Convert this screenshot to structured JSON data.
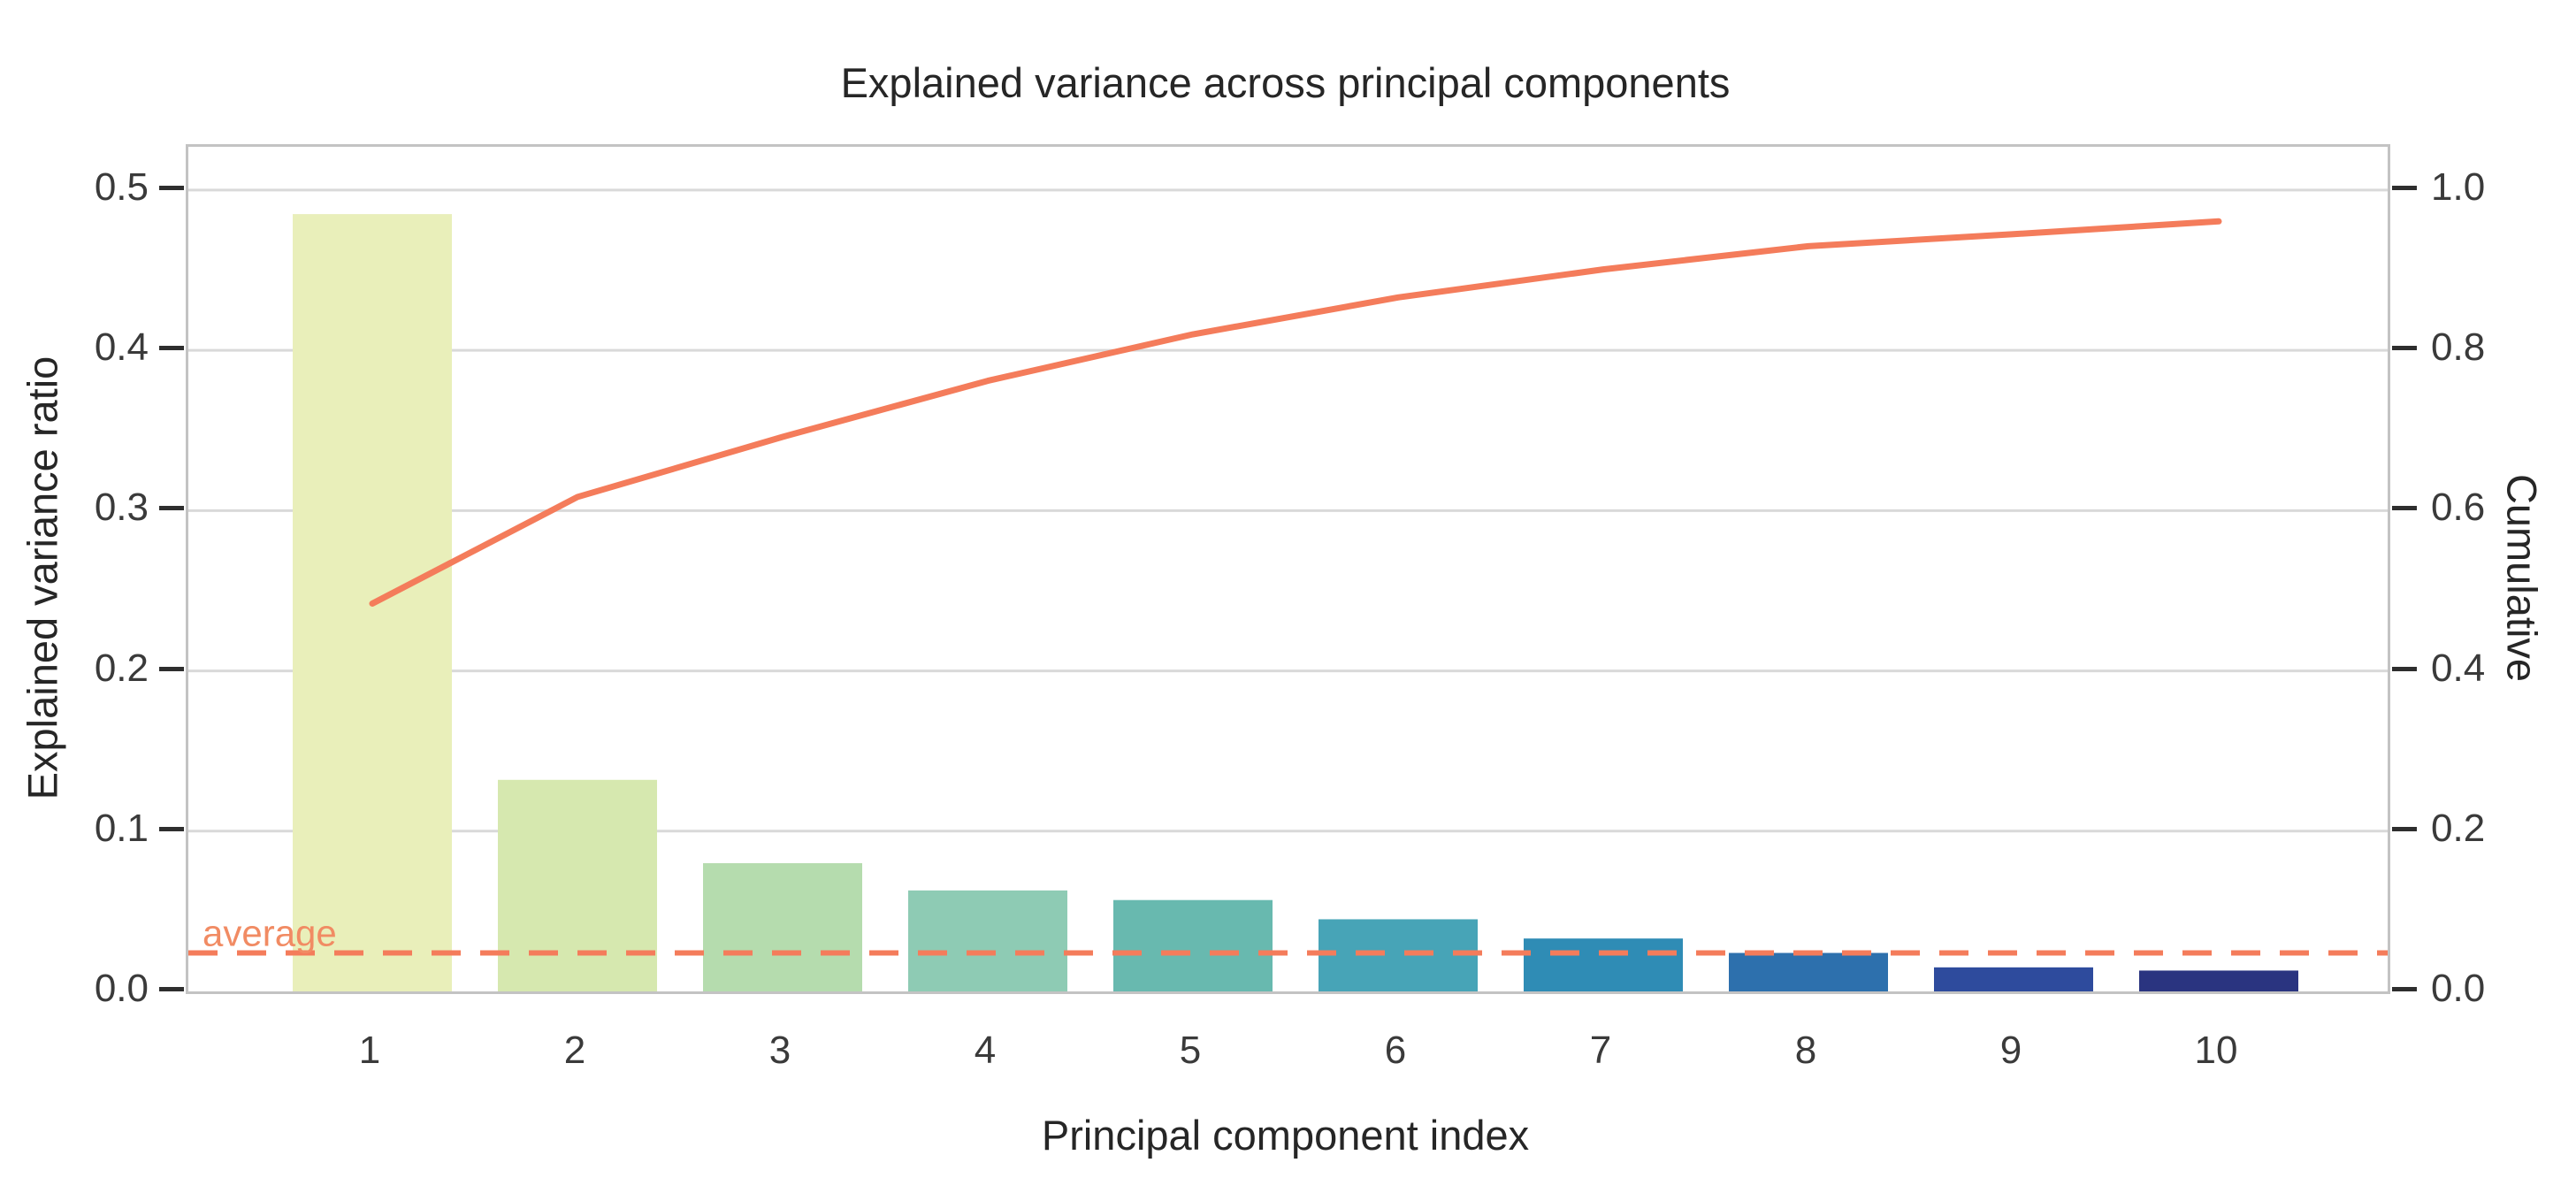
{
  "chart_data": {
    "type": "bar+line",
    "title": "Explained variance across principal components",
    "xlabel": "Principal component index",
    "ylabel_left": "Explained variance ratio",
    "ylabel_right": "Cumulative",
    "categories": [
      "1",
      "2",
      "3",
      "4",
      "5",
      "6",
      "7",
      "8",
      "9",
      "10"
    ],
    "series": [
      {
        "name": "Explained variance ratio",
        "type": "bar",
        "axis": "left",
        "values": [
          0.485,
          0.132,
          0.08,
          0.063,
          0.057,
          0.045,
          0.033,
          0.024,
          0.015,
          0.013
        ],
        "bar_colors": [
          "#e9efba",
          "#d6e8af",
          "#b5dcae",
          "#8ecbb4",
          "#68b9af",
          "#47a4b7",
          "#2f8cb5",
          "#2d70ad",
          "#2e4b9d",
          "#2a3480"
        ]
      },
      {
        "name": "Cumulative",
        "type": "line",
        "axis": "right",
        "values": [
          0.484,
          0.617,
          0.692,
          0.762,
          0.82,
          0.866,
          0.901,
          0.93,
          0.945,
          0.961
        ],
        "color": "#f47c5b"
      }
    ],
    "average_line": {
      "label": "average",
      "value": 0.024,
      "axis": "left",
      "style": "dashed",
      "color": "#f47c5b",
      "label_color": "#f18b63"
    },
    "left_axis": {
      "tick_labels": [
        "0.0",
        "0.1",
        "0.2",
        "0.3",
        "0.4",
        "0.5"
      ],
      "tick_values": [
        0.0,
        0.1,
        0.2,
        0.3,
        0.4,
        0.5
      ],
      "range": [
        0,
        0.527
      ]
    },
    "right_axis": {
      "tick_labels": [
        "0.0",
        "0.2",
        "0.4",
        "0.6",
        "0.8",
        "1.0"
      ],
      "tick_values": [
        0.0,
        0.2,
        0.4,
        0.6,
        0.8,
        1.0
      ],
      "range": [
        0,
        1.054
      ]
    },
    "grid": "horizontal",
    "legend": "none",
    "colors": {
      "grid_line": "#d9d9d9",
      "plot_border": "#c3c3c3",
      "tick_mark": "#2e2e2e",
      "tick_text": "#3a3a3a",
      "text": "#262626",
      "background": "#ffffff"
    }
  }
}
